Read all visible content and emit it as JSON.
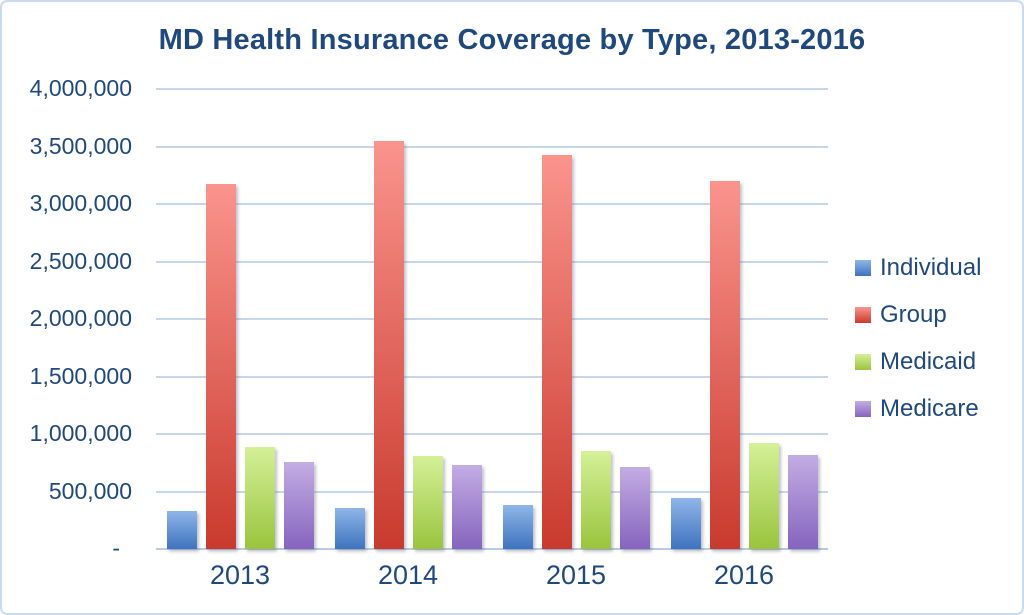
{
  "window": {
    "background": "#FFFFFF",
    "border_color": "#CBDAEF"
  },
  "chart_data": {
    "type": "bar",
    "title": "MD Health Insurance Coverage by Type, 2013-2016",
    "categories": [
      "2013",
      "2014",
      "2015",
      "2016"
    ],
    "series": [
      {
        "name": "Individual",
        "values": [
          330000,
          360000,
          380000,
          440000
        ],
        "color_top": "#8FB6E8",
        "color_bottom": "#3E73BE"
      },
      {
        "name": "Group",
        "values": [
          3170000,
          3550000,
          3430000,
          3200000
        ],
        "color_top": "#FA948D",
        "color_bottom": "#C93A2E"
      },
      {
        "name": "Medicaid",
        "values": [
          890000,
          810000,
          850000,
          920000
        ],
        "color_top": "#D5F098",
        "color_bottom": "#9AC43E"
      },
      {
        "name": "Medicare",
        "values": [
          760000,
          730000,
          710000,
          820000
        ],
        "color_top": "#C3ADE4",
        "color_bottom": "#8564BE"
      }
    ],
    "xlabel": "",
    "ylabel": "",
    "ylim": [
      0,
      4000000
    ],
    "ytick_step": 500000,
    "yticks": [
      {
        "value": 4000000,
        "label": "4,000,000"
      },
      {
        "value": 3500000,
        "label": "3,500,000"
      },
      {
        "value": 3000000,
        "label": "3,000,000"
      },
      {
        "value": 2500000,
        "label": "2,500,000"
      },
      {
        "value": 2000000,
        "label": "2,000,000"
      },
      {
        "value": 1500000,
        "label": "1,500,000"
      },
      {
        "value": 1000000,
        "label": "1,000,000"
      },
      {
        "value": 500000,
        "label": "500,000"
      },
      {
        "value": 0,
        "label": "-"
      }
    ],
    "grid": true,
    "legend_position": "right",
    "text_color": "#1F497D",
    "grid_color": "#C6D7EC",
    "axis_color": "#B7CBE5"
  }
}
